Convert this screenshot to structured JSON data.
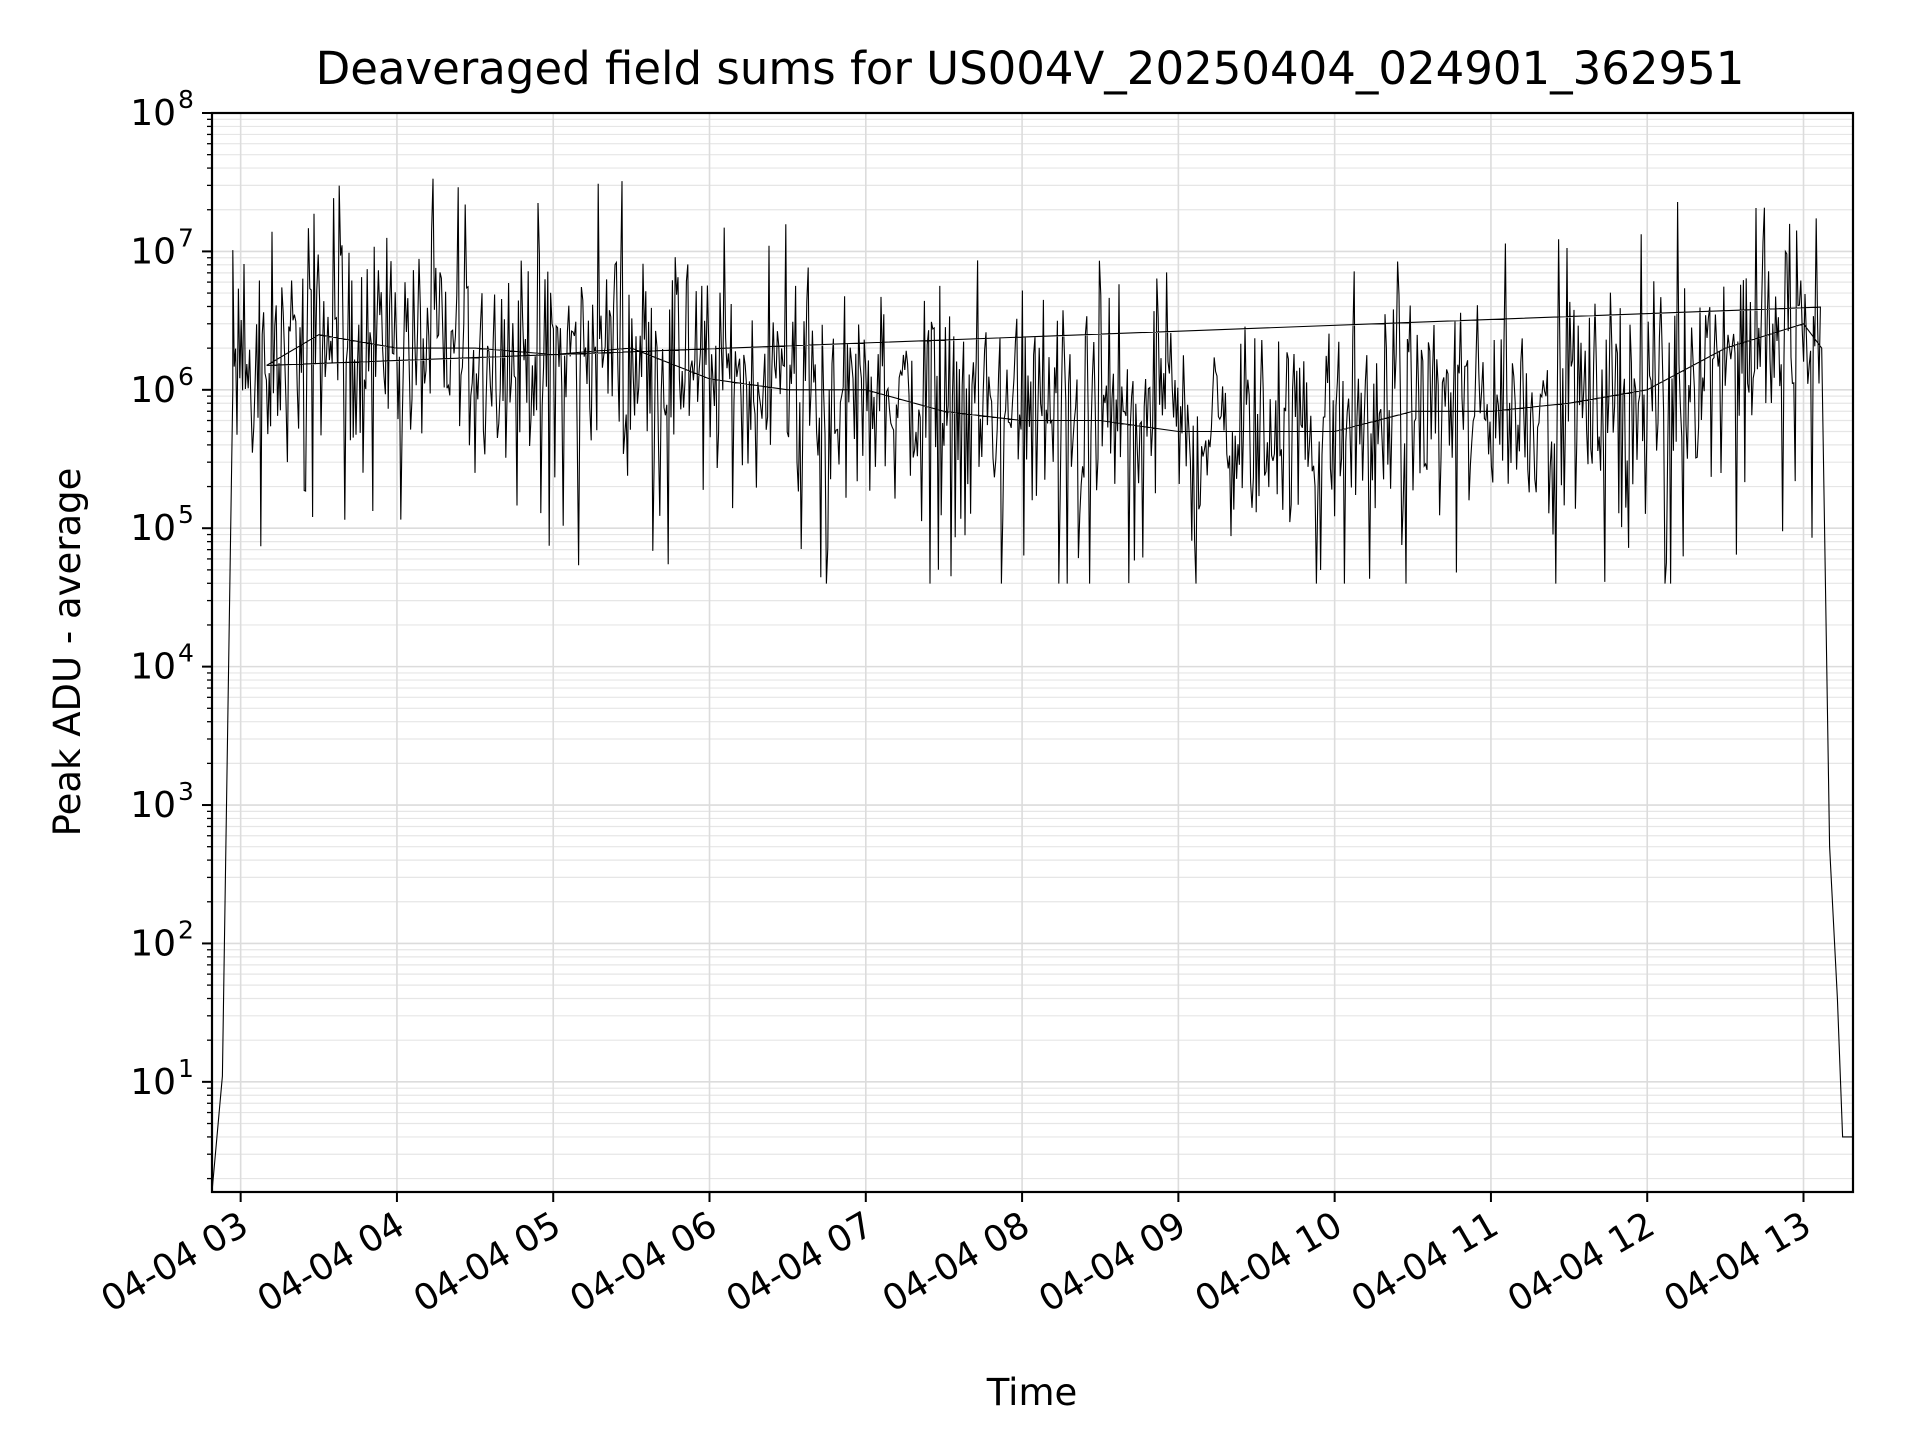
{
  "chart_data": {
    "type": "line",
    "title": "Deaveraged field sums for US004V_20250404_024901_362951",
    "xlabel": "Time",
    "ylabel": "Peak ADU - average",
    "y_scale": "log",
    "ylim": [
      1.6,
      100000000
    ],
    "xlim": [
      "2025-04-04 02:49",
      "2025-04-04 13:19"
    ],
    "grid": true,
    "x_tick_labels": [
      "04-04 03",
      "04-04 04",
      "04-04 05",
      "04-04 06",
      "04-04 07",
      "04-04 08",
      "04-04 09",
      "04-04 10",
      "04-04 11",
      "04-04 12",
      "04-04 13"
    ],
    "y_ticks": [
      {
        "base": "10",
        "exp": "1",
        "value": 10
      },
      {
        "base": "10",
        "exp": "2",
        "value": 100
      },
      {
        "base": "10",
        "exp": "3",
        "value": 1000
      },
      {
        "base": "10",
        "exp": "4",
        "value": 10000
      },
      {
        "base": "10",
        "exp": "5",
        "value": 100000
      },
      {
        "base": "10",
        "exp": "6",
        "value": 1000000
      },
      {
        "base": "10",
        "exp": "7",
        "value": 10000000
      },
      {
        "base": "10",
        "exp": "8",
        "value": 100000000
      }
    ],
    "line_color": "#000000",
    "series": [
      {
        "x": [
          "2025-04-04 02:49",
          "2025-04-04 02:53",
          "2025-04-04 02:57",
          "2025-04-04 03:10",
          "2025-04-04 03:30",
          "2025-04-04 04:00",
          "2025-04-04 04:30",
          "2025-04-04 05:00",
          "2025-04-04 05:30",
          "2025-04-04 06:00",
          "2025-04-04 06:30",
          "2025-04-04 07:00",
          "2025-04-04 07:30",
          "2025-04-04 08:00",
          "2025-04-04 08:30",
          "2025-04-04 09:00",
          "2025-04-04 09:30",
          "2025-04-04 10:00",
          "2025-04-04 10:30",
          "2025-04-04 11:00",
          "2025-04-04 11:30",
          "2025-04-04 12:00",
          "2025-04-04 12:30",
          "2025-04-04 13:00",
          "2025-04-04 13:07",
          "2025-04-04 13:10",
          "2025-04-04 13:13",
          "2025-04-04 13:15",
          "2025-04-04 13:19"
        ],
        "y": [
          1.6,
          11,
          1000000,
          1500000,
          2500000,
          2000000,
          2000000,
          1800000,
          2000000,
          1200000,
          1000000,
          1000000,
          700000,
          600000,
          600000,
          500000,
          500000,
          500000,
          700000,
          700000,
          800000,
          1000000,
          2000000,
          3000000,
          2000000,
          500,
          40,
          4,
          4
        ]
      }
    ]
  }
}
